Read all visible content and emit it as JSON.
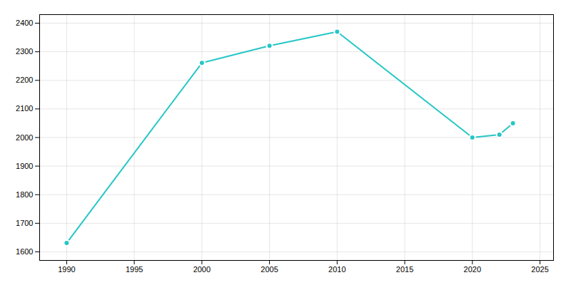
{
  "chart_data": {
    "type": "line",
    "x": [
      1990,
      2000,
      2005,
      2010,
      2020,
      2022,
      2023
    ],
    "values": [
      1631,
      2261,
      2321,
      2370,
      2000,
      2010,
      2050
    ],
    "color": "#26C6C6",
    "marker": "circle",
    "xlim": [
      1988,
      2026
    ],
    "ylim": [
      1570,
      2430
    ],
    "xticks": [
      1990,
      1995,
      2000,
      2005,
      2010,
      2015,
      2020,
      2025
    ],
    "yticks": [
      1600,
      1700,
      1800,
      1900,
      2000,
      2100,
      2200,
      2300,
      2400
    ],
    "grid": true
  }
}
